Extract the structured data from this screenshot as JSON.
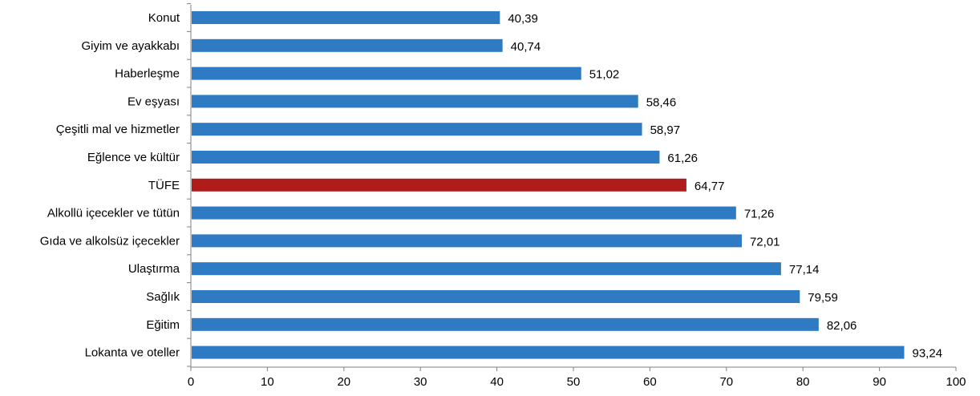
{
  "chart_data": {
    "type": "bar",
    "orientation": "horizontal",
    "categories": [
      "Konut",
      "Giyim ve ayakkabı",
      "Haberleşme",
      "Ev eşyası",
      "Çeşitli mal ve hizmetler",
      "Eğlence ve kültür",
      "TÜFE",
      "Alkollü içecekler ve tütün",
      "Gıda ve alkolsüz içecekler",
      "Ulaştırma",
      "Sağlık",
      "Eğitim",
      "Lokanta ve oteller"
    ],
    "values": [
      40.39,
      40.74,
      51.02,
      58.46,
      58.97,
      61.26,
      64.77,
      71.26,
      72.01,
      77.14,
      79.59,
      82.06,
      93.24
    ],
    "value_labels": [
      "40,39",
      "40,74",
      "51,02",
      "58,46",
      "58,97",
      "61,26",
      "64,77",
      "71,26",
      "72,01",
      "77,14",
      "79,59",
      "82,06",
      "93,24"
    ],
    "highlight_index": 6,
    "xlim": [
      0,
      100
    ],
    "x_ticks": [
      0,
      10,
      20,
      30,
      40,
      50,
      60,
      70,
      80,
      90,
      100
    ],
    "title": "",
    "xlabel": "",
    "ylabel": "",
    "grid": false,
    "colors": {
      "bar": "#2E7BC4",
      "highlight": "#B01C1C",
      "axis": "#808080"
    }
  }
}
